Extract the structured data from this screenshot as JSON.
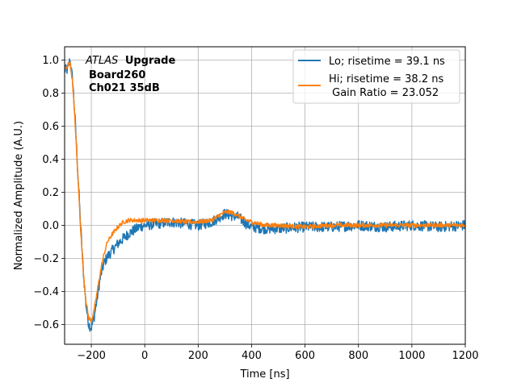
{
  "chart_data": {
    "type": "line",
    "xlabel": "Time [ns]",
    "ylabel": "Normalized Amplitude (A.U.)",
    "xlim": [
      -300,
      1200
    ],
    "ylim": [
      -0.72,
      1.08
    ],
    "x_ticks": [
      -200,
      0,
      200,
      400,
      600,
      800,
      1000,
      1200
    ],
    "y_ticks": [
      -0.6,
      -0.4,
      -0.2,
      0.0,
      0.2,
      0.4,
      0.6,
      0.8,
      1.0
    ],
    "x_tick_labels": [
      "−200",
      "0",
      "200",
      "400",
      "600",
      "800",
      "1000",
      "1200"
    ],
    "y_tick_labels": [
      "−0.6",
      "−0.4",
      "−0.2",
      "0.0",
      "0.2",
      "0.4",
      "0.6",
      "0.8",
      "1.0"
    ],
    "grid": true,
    "legend_position": "top-right",
    "annotation": {
      "italic": "ATLAS",
      "bold": "Upgrade",
      "line2": "Board260",
      "line3": "Ch021 35dB"
    },
    "series": [
      {
        "name": "Lo; risetime = 39.1 ns",
        "color": "#1f77b4",
        "noise": 0.02,
        "x": [
          -290,
          -280,
          -270,
          -260,
          -250,
          -240,
          -230,
          -220,
          -210,
          -200,
          -190,
          -180,
          -170,
          -160,
          -150,
          -140,
          -120,
          -100,
          -80,
          -60,
          -40,
          -20,
          0,
          50,
          100,
          150,
          200,
          250,
          280,
          300,
          320,
          350,
          380,
          400,
          450,
          500,
          600,
          700,
          800,
          900,
          1000,
          1100,
          1200
        ],
        "values": [
          0.94,
          1.0,
          0.88,
          0.62,
          0.3,
          0.0,
          -0.28,
          -0.48,
          -0.6,
          -0.62,
          -0.56,
          -0.46,
          -0.35,
          -0.27,
          -0.22,
          -0.19,
          -0.15,
          -0.11,
          -0.08,
          -0.05,
          -0.03,
          -0.01,
          0.0,
          0.01,
          0.02,
          0.01,
          0.0,
          0.02,
          0.05,
          0.07,
          0.06,
          0.05,
          0.01,
          -0.01,
          -0.02,
          -0.02,
          -0.01,
          -0.01,
          0.0,
          -0.01,
          0.0,
          -0.01,
          0.0
        ]
      },
      {
        "name": "Hi; risetime = 38.2 ns",
        "name_line2": " Gain Ratio = 23.052",
        "color": "#ff7f0e",
        "noise": 0.008,
        "x": [
          -290,
          -280,
          -270,
          -260,
          -250,
          -240,
          -230,
          -220,
          -210,
          -200,
          -190,
          -180,
          -170,
          -160,
          -150,
          -140,
          -120,
          -100,
          -80,
          -60,
          -40,
          -20,
          0,
          50,
          100,
          150,
          200,
          250,
          280,
          300,
          320,
          350,
          380,
          400,
          450,
          500,
          600,
          700,
          800,
          900,
          1000,
          1100,
          1200
        ],
        "values": [
          0.95,
          1.0,
          0.86,
          0.6,
          0.28,
          -0.02,
          -0.28,
          -0.46,
          -0.56,
          -0.58,
          -0.52,
          -0.42,
          -0.32,
          -0.23,
          -0.16,
          -0.1,
          -0.05,
          -0.01,
          0.02,
          0.03,
          0.03,
          0.03,
          0.03,
          0.03,
          0.03,
          0.02,
          0.02,
          0.03,
          0.06,
          0.08,
          0.08,
          0.06,
          0.03,
          0.02,
          0.0,
          0.0,
          -0.01,
          0.0,
          0.0,
          0.0,
          0.0,
          0.0,
          0.0
        ]
      }
    ]
  }
}
